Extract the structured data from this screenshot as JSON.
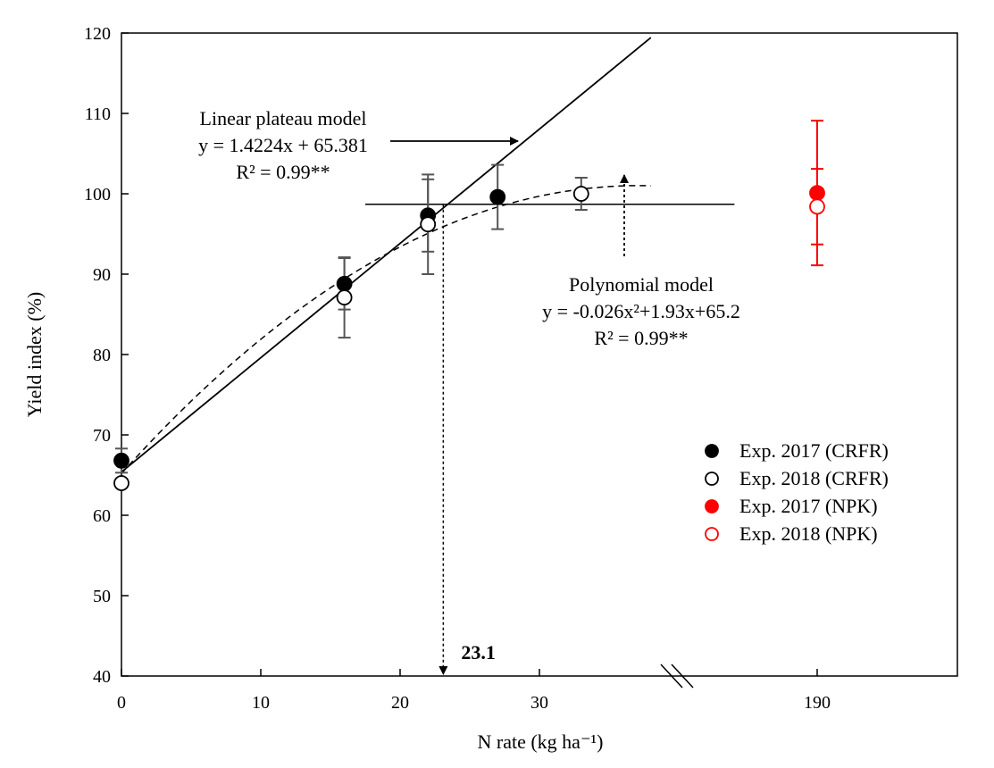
{
  "chart_data": {
    "type": "scatter",
    "xlabel": "N rate (kg ha⁻¹)",
    "ylabel": "Yield index (%)",
    "ylim": [
      40,
      120
    ],
    "y_ticks": [
      40,
      50,
      60,
      70,
      80,
      90,
      100,
      110,
      120
    ],
    "x_ticks": [
      0,
      10,
      20,
      30
    ],
    "x_break_label": "190",
    "x_break_value": 190,
    "grid": false,
    "legend_position": "bottom-right",
    "series": [
      {
        "name": "Exp. 2017 (CRFR)",
        "marker": "filled-circle",
        "color": "#000000",
        "points": [
          {
            "x": 0,
            "y": 66.8,
            "err": 1.5
          },
          {
            "x": 16,
            "y": 88.8,
            "err": 3.2
          },
          {
            "x": 22,
            "y": 97.3,
            "err": 4.5
          },
          {
            "x": 27,
            "y": 99.6,
            "err": 4.0
          }
        ]
      },
      {
        "name": "Exp. 2018 (CRFR)",
        "marker": "open-circle",
        "color": "#000000",
        "points": [
          {
            "x": 0,
            "y": 64.0,
            "err": 0
          },
          {
            "x": 16,
            "y": 87.1,
            "err": 5.0
          },
          {
            "x": 22,
            "y": 96.2,
            "err": 6.2
          },
          {
            "x": 33,
            "y": 100.0,
            "err": 2.0
          }
        ]
      },
      {
        "name": "Exp. 2017 (NPK)",
        "marker": "filled-circle",
        "color": "#ff0000",
        "points": [
          {
            "x": 190,
            "y": 100.1,
            "err": 9.0
          }
        ]
      },
      {
        "name": "Exp. 2018 (NPK)",
        "marker": "open-circle",
        "color": "#ff0000",
        "points": [
          {
            "x": 190,
            "y": 98.4,
            "err": 4.7
          }
        ]
      }
    ],
    "models": {
      "linear_plateau": {
        "label_lines": [
          "Linear plateau model",
          "y = 1.4224x  + 65.381",
          "R² = 0.99**"
        ],
        "slope": 1.4224,
        "intercept": 65.381,
        "x_range": [
          0,
          38
        ],
        "plateau_y": 98.7,
        "plateau_x_range": [
          17.5,
          44
        ]
      },
      "polynomial": {
        "label_lines": [
          "Polynomial model",
          "y = -0.026x²+1.93x+65.2",
          "R² = 0.99**"
        ],
        "a": -0.026,
        "b": 1.93,
        "c": 65.2,
        "x_range": [
          0,
          38
        ]
      }
    },
    "critical_value": {
      "label": "23.1",
      "x": 23.1
    }
  }
}
